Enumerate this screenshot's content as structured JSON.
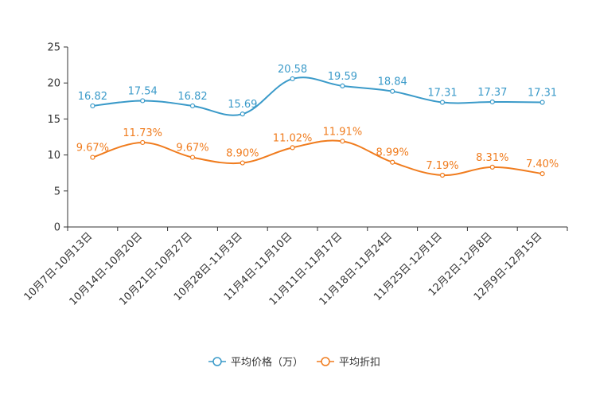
{
  "chart_data": {
    "type": "line",
    "categories": [
      "10月7日-10月13日",
      "10月14日-10月20日",
      "10月21日-10月27日",
      "10月28日-11月3日",
      "11月4日-11月10日",
      "11月11日-11月17日",
      "11月18日-11月24日",
      "11月25日-12月1日",
      "12月2日-12月8日",
      "12月9日-12月15日"
    ],
    "series": [
      {
        "name": "平均价格（万）",
        "color": "#3a9ac9",
        "values": [
          16.82,
          17.54,
          16.82,
          15.69,
          20.58,
          19.59,
          18.84,
          17.31,
          17.37,
          17.31
        ],
        "labels": [
          "16.82",
          "17.54",
          "16.82",
          "15.69",
          "20.58",
          "19.59",
          "18.84",
          "17.31",
          "17.37",
          "17.31"
        ]
      },
      {
        "name": "平均折扣",
        "color": "#f07c1e",
        "values": [
          9.67,
          11.73,
          9.67,
          8.9,
          11.02,
          11.91,
          8.99,
          7.19,
          8.31,
          7.4
        ],
        "labels": [
          "9.67%",
          "11.73%",
          "9.67%",
          "8.90%",
          "11.02%",
          "11.91%",
          "8.99%",
          "7.19%",
          "8.31%",
          "7.40%"
        ]
      }
    ],
    "yticks": [
      "0",
      "5",
      "10",
      "15",
      "20",
      "25"
    ],
    "ylim": [
      0,
      25
    ],
    "title": "",
    "xlabel": "",
    "ylabel": "",
    "legend_position": "bottom-center"
  }
}
